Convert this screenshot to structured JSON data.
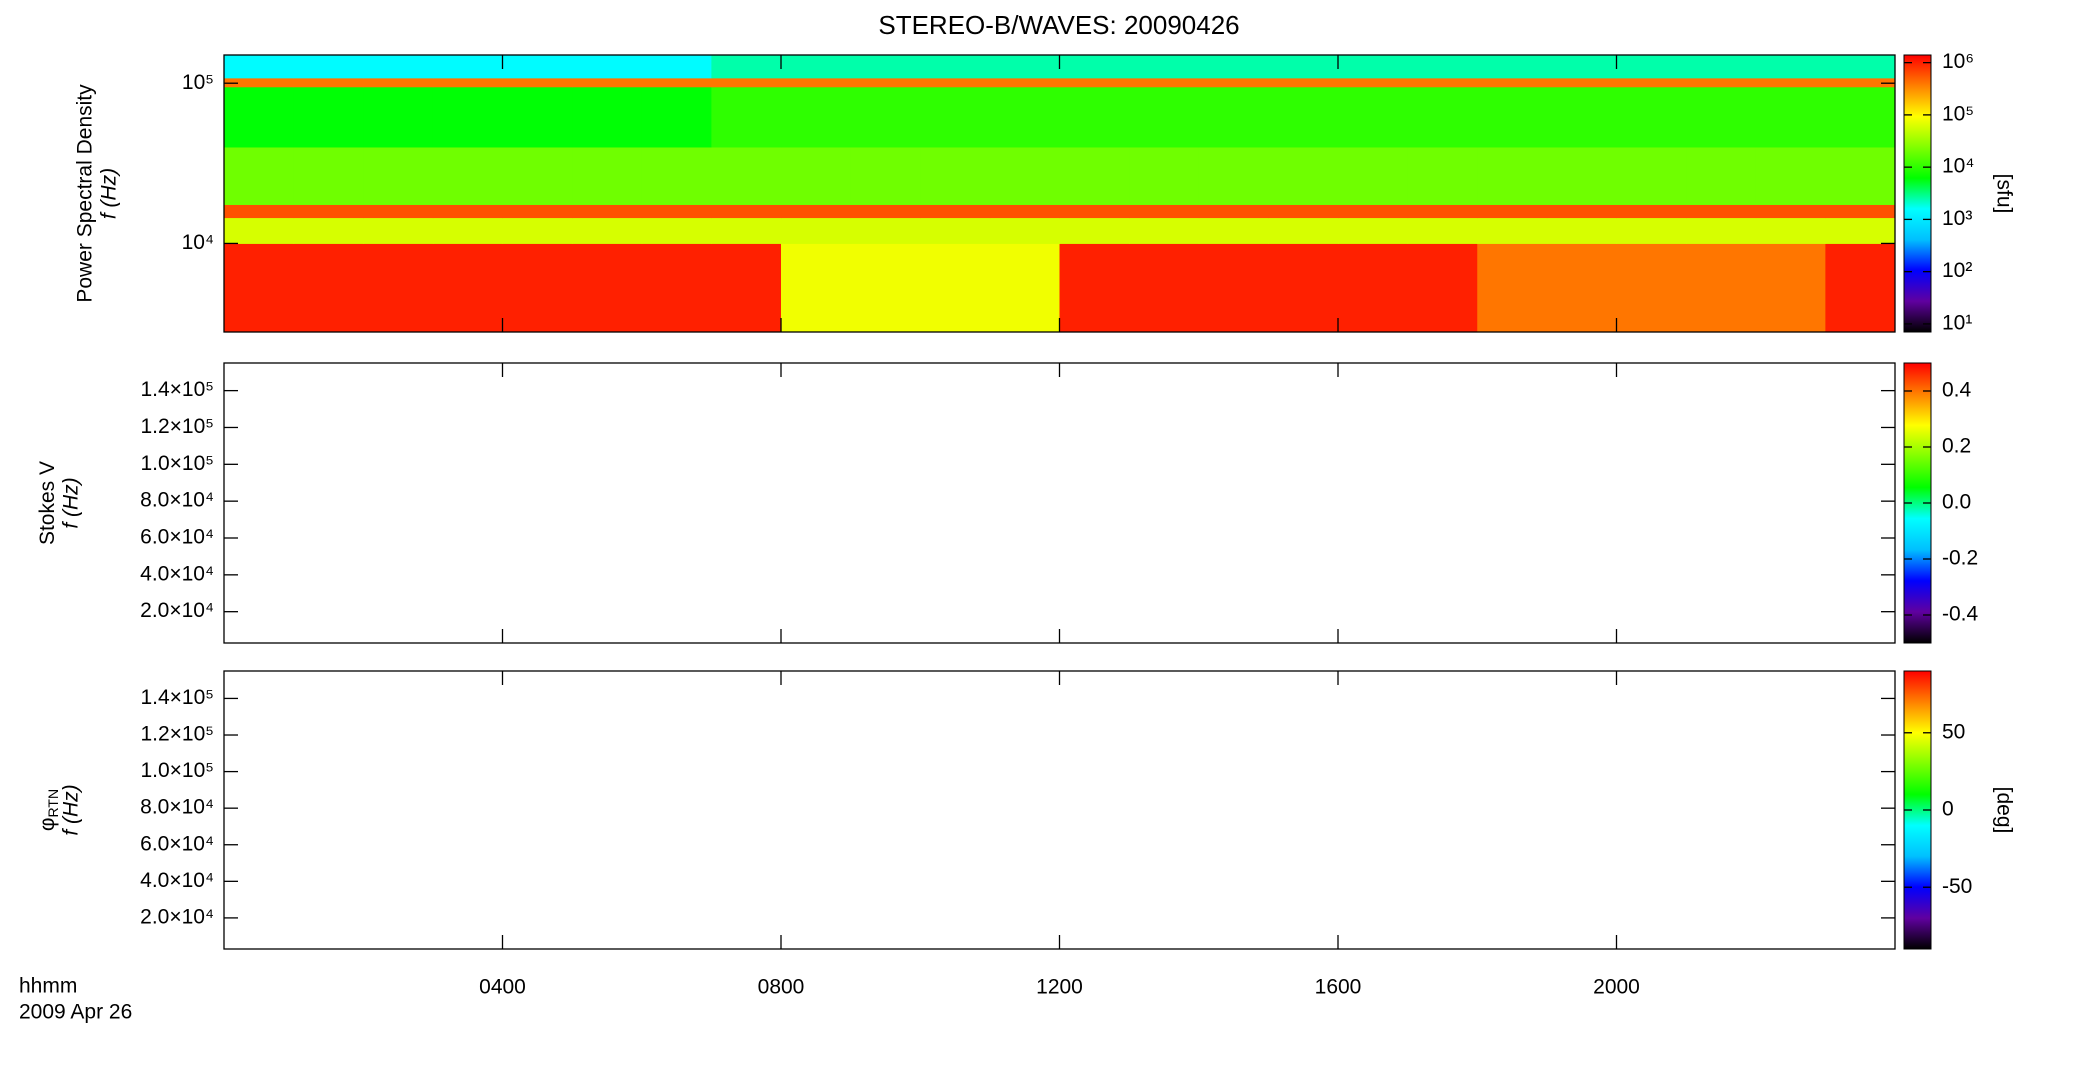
{
  "colormap": [
    "#000000",
    "#6000a0",
    "#0000ff",
    "#00c0ff",
    "#00ffff",
    "#00ff00",
    "#80ff00",
    "#ffff00",
    "#ff8000",
    "#ff0000"
  ],
  "chart_data": [
    {
      "type": "heatmap",
      "title": "STEREO-B/WAVES: 20090426",
      "ylabel": "Power Spectral Density",
      "ylabel2": "f (Hz)",
      "ylog": true,
      "ylim": [
        2800,
        150000
      ],
      "yticks": [
        {
          "value": 10000,
          "label": "10⁴"
        },
        {
          "value": 100000,
          "label": "10⁵"
        }
      ],
      "x_bins": [
        0,
        1,
        2,
        3,
        4,
        5,
        6,
        7,
        8,
        9,
        10,
        11,
        12,
        13,
        14,
        15,
        16,
        17,
        18,
        19,
        20,
        21,
        22,
        23,
        24
      ],
      "y_bins": [
        2800,
        10000,
        14500,
        17500,
        40000,
        95000,
        108000,
        150000
      ],
      "values": [
        [
          1000000,
          1000000,
          1000000,
          1000000,
          1000000,
          1000000,
          1000000,
          1000000,
          80000,
          80000,
          80000,
          80000,
          1000000,
          1000000,
          1000000,
          1000000,
          1000000,
          1000000,
          400000,
          400000,
          400000,
          400000,
          400000,
          1000000
        ],
        [
          60000,
          60000,
          60000,
          60000,
          60000,
          60000,
          60000,
          60000,
          60000,
          60000,
          60000,
          60000,
          60000,
          60000,
          60000,
          60000,
          60000,
          60000,
          60000,
          60000,
          60000,
          60000,
          60000,
          60000
        ],
        [
          600000,
          600000,
          600000,
          600000,
          600000,
          600000,
          600000,
          600000,
          600000,
          600000,
          600000,
          600000,
          600000,
          600000,
          600000,
          600000,
          600000,
          600000,
          600000,
          600000,
          600000,
          600000,
          600000,
          600000
        ],
        [
          20000,
          20000,
          20000,
          20000,
          20000,
          20000,
          20000,
          20000,
          20000,
          20000,
          20000,
          20000,
          20000,
          20000,
          20000,
          20000,
          20000,
          20000,
          20000,
          20000,
          20000,
          20000,
          20000,
          20000
        ],
        [
          6000,
          6000,
          6000,
          6000,
          6000,
          6000,
          6000,
          10000,
          10000,
          10000,
          10000,
          10000,
          10000,
          10000,
          10000,
          10000,
          10000,
          10000,
          10000,
          10000,
          10000,
          10000,
          10000,
          10000
        ],
        [
          400000,
          400000,
          400000,
          400000,
          400000,
          400000,
          400000,
          400000,
          400000,
          400000,
          400000,
          400000,
          400000,
          400000,
          400000,
          400000,
          400000,
          400000,
          400000,
          400000,
          400000,
          400000,
          400000,
          400000
        ],
        [
          1500,
          1500,
          1500,
          1500,
          1500,
          1500,
          1500,
          2500,
          2500,
          2500,
          2500,
          2500,
          2500,
          2500,
          2500,
          2500,
          2500,
          2500,
          2500,
          2500,
          2500,
          2500,
          2500,
          2500
        ]
      ],
      "clog": true,
      "clim": [
        7,
        1400000
      ],
      "cticks": [
        {
          "value": 10,
          "label": "10¹"
        },
        {
          "value": 100,
          "label": "10²"
        },
        {
          "value": 1000,
          "label": "10³"
        },
        {
          "value": 10000,
          "label": "10⁴"
        },
        {
          "value": 100000,
          "label": "10⁵"
        },
        {
          "value": 1000000,
          "label": "10⁶"
        }
      ],
      "clabel": "[sfu]"
    },
    {
      "type": "heatmap",
      "ylabel": "Stokes V",
      "ylabel2": "f (Hz)",
      "ylim": [
        3000,
        155000
      ],
      "yticks": [
        {
          "value": 20000,
          "label": "2.0×10⁴"
        },
        {
          "value": 40000,
          "label": "4.0×10⁴"
        },
        {
          "value": 60000,
          "label": "6.0×10⁴"
        },
        {
          "value": 80000,
          "label": "8.0×10⁴"
        },
        {
          "value": 100000,
          "label": "1.0×10⁵"
        },
        {
          "value": 120000,
          "label": "1.2×10⁵"
        },
        {
          "value": 140000,
          "label": "1.4×10⁵"
        }
      ],
      "clim": [
        -0.5,
        0.5
      ],
      "cticks": [
        -0.4,
        -0.2,
        {
          "value": 0,
          "label": "0.0"
        },
        0.2,
        0.4
      ]
    },
    {
      "type": "heatmap",
      "ylabel": "φ",
      "ylabel_sub": "RTN",
      "ylabel2": "f (Hz)",
      "ylim": [
        3000,
        155000
      ],
      "yticks": [
        {
          "value": 20000,
          "label": "2.0×10⁴"
        },
        {
          "value": 40000,
          "label": "4.0×10⁴"
        },
        {
          "value": 60000,
          "label": "6.0×10⁴"
        },
        {
          "value": 80000,
          "label": "8.0×10⁴"
        },
        {
          "value": 100000,
          "label": "1.0×10⁵"
        },
        {
          "value": 120000,
          "label": "1.2×10⁵"
        },
        {
          "value": 140000,
          "label": "1.4×10⁵"
        }
      ],
      "clim": [
        -90,
        90
      ],
      "cticks": [
        -50,
        0,
        50
      ],
      "clabel": "[deg]",
      "xlim": [
        0,
        24
      ],
      "xticks": [
        {
          "value": 4,
          "label": "0400"
        },
        {
          "value": 8,
          "label": "0800"
        },
        {
          "value": 12,
          "label": "1200"
        },
        {
          "value": 16,
          "label": "1600"
        },
        {
          "value": 20,
          "label": "2000"
        }
      ],
      "xlabel": "hhmm",
      "date": "2009 Apr 26"
    }
  ]
}
